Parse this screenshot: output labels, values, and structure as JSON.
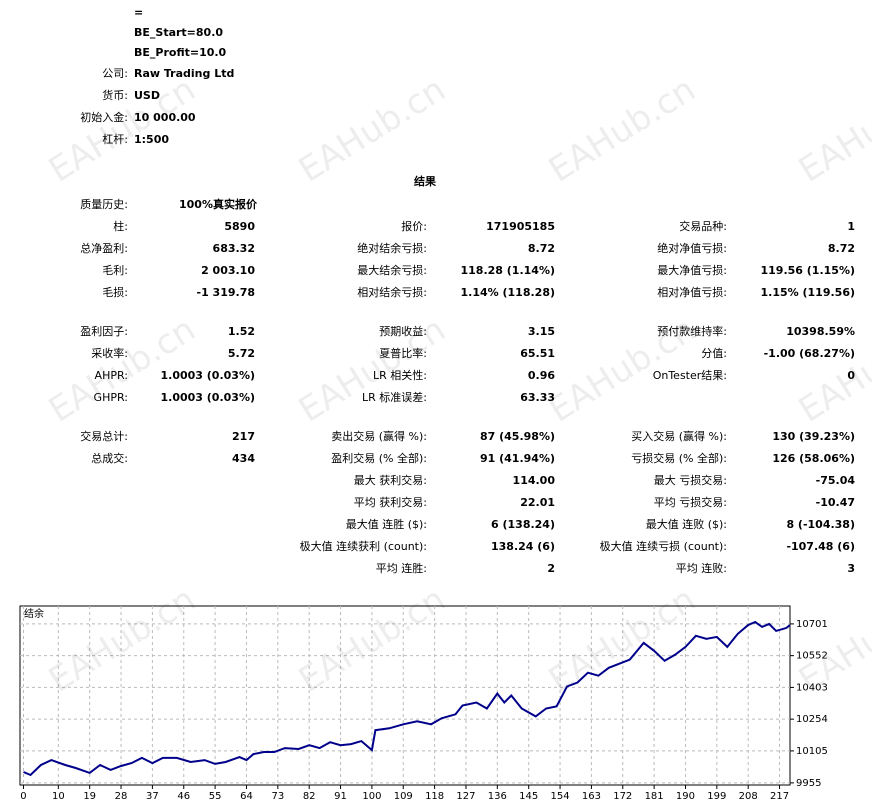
{
  "watermark": "EAHub.cn",
  "header": {
    "lines": [
      {
        "value": "="
      },
      {
        "value": "BE_Start=80.0"
      },
      {
        "value": "BE_Profit=10.0"
      },
      {
        "label": "公司:",
        "value": "Raw Trading Ltd"
      },
      {
        "label": "货币:",
        "value": "USD"
      },
      {
        "label": "初始入金:",
        "value": "10 000.00"
      },
      {
        "label": "杠杆:",
        "value": "1:500"
      }
    ]
  },
  "results_title": "结果",
  "quality": {
    "label": "质量历史:",
    "value": "100%真实报价"
  },
  "stats": {
    "groups": [
      [
        [
          {
            "label": "柱:",
            "value": "5890"
          },
          {
            "label": "报价:",
            "value": "171905185"
          },
          {
            "label": "交易品种:",
            "value": "1"
          }
        ],
        [
          {
            "label": "总净盈利:",
            "value": "683.32"
          },
          {
            "label": "绝对结余亏损:",
            "value": "8.72"
          },
          {
            "label": "绝对净值亏损:",
            "value": "8.72"
          }
        ],
        [
          {
            "label": "毛利:",
            "value": "2 003.10"
          },
          {
            "label": "最大结余亏损:",
            "value": "118.28 (1.14%)"
          },
          {
            "label": "最大净值亏损:",
            "value": "119.56 (1.15%)"
          }
        ],
        [
          {
            "label": "毛损:",
            "value": "-1 319.78"
          },
          {
            "label": "相对结余亏损:",
            "value": "1.14% (118.28)"
          },
          {
            "label": "相对净值亏损:",
            "value": "1.15% (119.56)"
          }
        ]
      ],
      [
        [
          {
            "label": "盈利因子:",
            "value": "1.52"
          },
          {
            "label": "预期收益:",
            "value": "3.15"
          },
          {
            "label": "预付款维持率:",
            "value": "10398.59%"
          }
        ],
        [
          {
            "label": "采收率:",
            "value": "5.72"
          },
          {
            "label": "夏普比率:",
            "value": "65.51"
          },
          {
            "label": "分值:",
            "value": "-1.00 (68.27%)"
          }
        ],
        [
          {
            "label": "AHPR:",
            "value": "1.0003 (0.03%)"
          },
          {
            "label": "LR 相关性:",
            "value": "0.96"
          },
          {
            "label": "OnTester结果:",
            "value": "0"
          }
        ],
        [
          {
            "label": "GHPR:",
            "value": "1.0003 (0.03%)"
          },
          {
            "label": "LR 标准误差:",
            "value": "63.33"
          },
          null
        ]
      ],
      [
        [
          {
            "label": "交易总计:",
            "value": "217"
          },
          {
            "label": "卖出交易 (赢得 %):",
            "value": "87 (45.98%)"
          },
          {
            "label": "买入交易 (赢得 %):",
            "value": "130 (39.23%)"
          }
        ],
        [
          {
            "label": "总成交:",
            "value": "434"
          },
          {
            "label": "盈利交易 (% 全部):",
            "value": "91 (41.94%)"
          },
          {
            "label": "亏损交易 (% 全部):",
            "value": "126 (58.06%)"
          }
        ],
        [
          null,
          {
            "label": "最大 获利交易:",
            "value": "114.00"
          },
          {
            "label": "最大 亏损交易:",
            "value": "-75.04"
          }
        ],
        [
          null,
          {
            "label": "平均 获利交易:",
            "value": "22.01"
          },
          {
            "label": "平均 亏损交易:",
            "value": "-10.47"
          }
        ],
        [
          null,
          {
            "label": "最大值 连胜 ($):",
            "value": "6 (138.24)"
          },
          {
            "label": "最大值 连败 ($):",
            "value": "8 (-104.38)"
          }
        ],
        [
          null,
          {
            "label": "极大值 连续获利 (count):",
            "value": "138.24 (6)"
          },
          {
            "label": "极大值 连续亏损 (count):",
            "value": "-107.48 (6)"
          }
        ],
        [
          null,
          {
            "label": "平均 连胜:",
            "value": "2"
          },
          {
            "label": "平均 连败:",
            "value": "3"
          }
        ]
      ]
    ]
  },
  "chart_data": {
    "type": "line",
    "title": "结余",
    "color": "#00008b",
    "grid": true,
    "x": [
      0,
      2,
      5,
      8,
      12,
      15,
      19,
      22,
      25,
      28,
      31,
      34,
      37,
      40,
      44,
      48,
      52,
      55,
      58,
      62,
      64,
      66,
      69,
      72,
      75,
      79,
      82,
      85,
      88,
      91,
      94,
      97,
      100,
      101,
      105,
      109,
      113,
      117,
      120,
      124,
      126,
      130,
      133,
      136,
      138,
      140,
      143,
      147,
      150,
      153,
      156,
      159,
      162,
      165,
      168,
      171,
      174,
      178,
      181,
      184,
      187,
      190,
      193,
      196,
      199,
      202,
      205,
      208,
      210,
      212,
      214,
      216,
      219,
      220
    ],
    "values": [
      10006,
      9992,
      10039,
      10062,
      10039,
      10025,
      10002,
      10039,
      10016,
      10034,
      10048,
      10072,
      10048,
      10072,
      10072,
      10053,
      10062,
      10044,
      10053,
      10076,
      10062,
      10090,
      10100,
      10100,
      10118,
      10114,
      10132,
      10118,
      10146,
      10132,
      10137,
      10151,
      10109,
      10202,
      10211,
      10230,
      10244,
      10230,
      10258,
      10277,
      10318,
      10332,
      10304,
      10374,
      10332,
      10365,
      10304,
      10267,
      10304,
      10314,
      10407,
      10426,
      10472,
      10458,
      10495,
      10514,
      10533,
      10612,
      10575,
      10528,
      10556,
      10593,
      10645,
      10631,
      10640,
      10593,
      10654,
      10696,
      10710,
      10687,
      10701,
      10668,
      10682,
      10696
    ],
    "xlim": [
      -1,
      220
    ],
    "ylim": [
      9945,
      10785
    ],
    "xticks": [
      0,
      10,
      19,
      28,
      37,
      46,
      55,
      64,
      73,
      82,
      91,
      100,
      109,
      118,
      127,
      136,
      145,
      154,
      163,
      172,
      181,
      190,
      199,
      208,
      217
    ],
    "yticks": [
      9955,
      10105,
      10254,
      10403,
      10552,
      10701
    ]
  }
}
